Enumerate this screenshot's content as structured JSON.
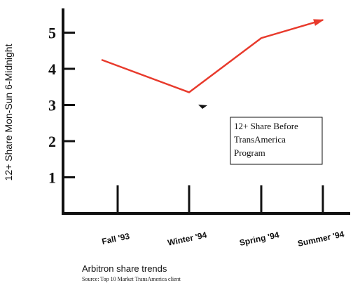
{
  "chart_data": {
    "type": "line",
    "categories": [
      "Fall '93",
      "Winter '94",
      "Spring '94",
      "Summer '94"
    ],
    "values": [
      4.25,
      3.35,
      4.85,
      5.35
    ],
    "ylabel": "12+ Share Mon-Sun 6-Midnight",
    "yticks": [
      "1",
      "2",
      "3",
      "4",
      "5"
    ],
    "ylim": [
      0,
      5.8
    ],
    "annotation": [
      "12+ Share Before",
      "TransAmerica",
      "Program"
    ],
    "line_color": "#e83a2c",
    "caption": "Arbitron share trends",
    "source": "Source:  Top 10 Market TransAmerica client"
  }
}
